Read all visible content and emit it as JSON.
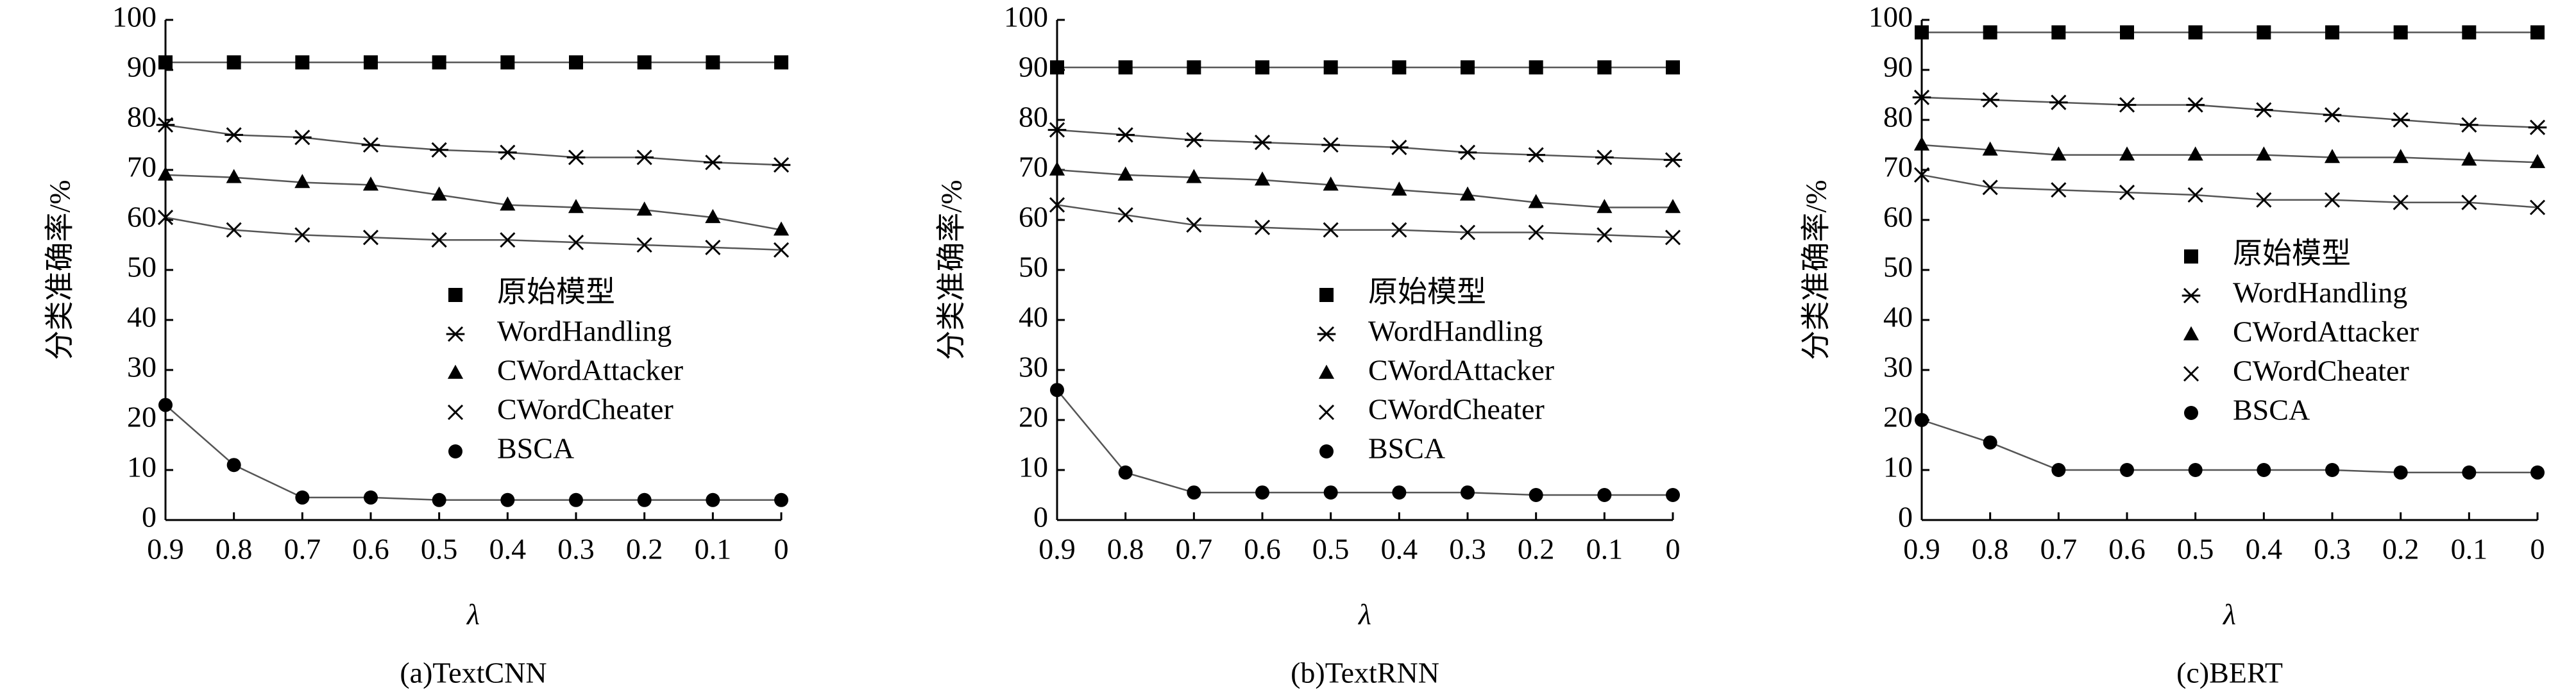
{
  "chart_data": [
    {
      "type": "line",
      "caption": "(a)TextCNN",
      "x_label": "λ",
      "y_label": "分类准确率/%",
      "x": [
        0.9,
        0.8,
        0.7,
        0.6,
        0.5,
        0.4,
        0.3,
        0.2,
        0.1,
        0
      ],
      "xlim": [
        0.9,
        0
      ],
      "xticks": [
        0.9,
        0.8,
        0.7,
        0.6,
        0.5,
        0.4,
        0.3,
        0.2,
        0.1,
        0
      ],
      "ylim": [
        0,
        100
      ],
      "yticks": [
        0,
        10,
        20,
        30,
        40,
        50,
        60,
        70,
        80,
        90,
        100
      ],
      "grid": false,
      "legend": "center right",
      "series": [
        {
          "name": "原始模型",
          "marker": "square",
          "color": "#000000",
          "values": [
            91.5,
            91.5,
            91.5,
            91.5,
            91.5,
            91.5,
            91.5,
            91.5,
            91.5,
            91.5
          ]
        },
        {
          "name": "WordHandling",
          "marker": "asterisk",
          "color": "#000000",
          "values": [
            79,
            77,
            76.5,
            75,
            74,
            73.5,
            72.5,
            72.5,
            71.5,
            71
          ]
        },
        {
          "name": "CWordAttacker",
          "marker": "triangle",
          "color": "#000000",
          "values": [
            69,
            68.5,
            67.5,
            67,
            65,
            63,
            62.5,
            62,
            60.5,
            58
          ]
        },
        {
          "name": "CWordCheater",
          "marker": "x",
          "color": "#000000",
          "values": [
            60.5,
            58,
            57,
            56.5,
            56,
            56,
            55.5,
            55,
            54.5,
            54
          ]
        },
        {
          "name": "BSCA",
          "marker": "circle",
          "color": "#000000",
          "values": [
            23,
            11,
            4.5,
            4.5,
            4,
            4,
            4,
            4,
            4,
            4
          ]
        }
      ]
    },
    {
      "type": "line",
      "caption": "(b)TextRNN",
      "x_label": "λ",
      "y_label": "分类准确率/%",
      "x": [
        0.9,
        0.8,
        0.7,
        0.6,
        0.5,
        0.4,
        0.3,
        0.2,
        0.1,
        0
      ],
      "xlim": [
        0.9,
        0
      ],
      "xticks": [
        0.9,
        0.8,
        0.7,
        0.6,
        0.5,
        0.4,
        0.3,
        0.2,
        0.1,
        0
      ],
      "ylim": [
        0,
        100
      ],
      "yticks": [
        0,
        10,
        20,
        30,
        40,
        50,
        60,
        70,
        80,
        90,
        100
      ],
      "grid": false,
      "legend": "center right",
      "series": [
        {
          "name": "原始模型",
          "marker": "square",
          "color": "#000000",
          "values": [
            90.5,
            90.5,
            90.5,
            90.5,
            90.5,
            90.5,
            90.5,
            90.5,
            90.5,
            90.5
          ]
        },
        {
          "name": "WordHandling",
          "marker": "asterisk",
          "color": "#000000",
          "values": [
            78,
            77,
            76,
            75.5,
            75,
            74.5,
            73.5,
            73,
            72.5,
            72
          ]
        },
        {
          "name": "CWordAttacker",
          "marker": "triangle",
          "color": "#000000",
          "values": [
            70,
            69,
            68.5,
            68,
            67,
            66,
            65,
            63.5,
            62.5,
            62.5
          ]
        },
        {
          "name": "CWordCheater",
          "marker": "x",
          "color": "#000000",
          "values": [
            63,
            61,
            59,
            58.5,
            58,
            58,
            57.5,
            57.5,
            57,
            56.5
          ]
        },
        {
          "name": "BSCA",
          "marker": "circle",
          "color": "#000000",
          "values": [
            26,
            9.5,
            5.5,
            5.5,
            5.5,
            5.5,
            5.5,
            5,
            5,
            5
          ]
        }
      ]
    },
    {
      "type": "line",
      "caption": "(c)BERT",
      "x_label": "λ",
      "y_label": "分类准确率/%",
      "x": [
        0.9,
        0.8,
        0.7,
        0.6,
        0.5,
        0.4,
        0.3,
        0.2,
        0.1,
        0
      ],
      "xlim": [
        0.9,
        0
      ],
      "xticks": [
        0.9,
        0.8,
        0.7,
        0.6,
        0.5,
        0.4,
        0.3,
        0.2,
        0.1,
        0
      ],
      "ylim": [
        0,
        100
      ],
      "yticks": [
        0,
        10,
        20,
        30,
        40,
        50,
        60,
        70,
        80,
        90,
        100
      ],
      "grid": false,
      "legend": "center right",
      "series": [
        {
          "name": "原始模型",
          "marker": "square",
          "color": "#000000",
          "values": [
            97.5,
            97.5,
            97.5,
            97.5,
            97.5,
            97.5,
            97.5,
            97.5,
            97.5,
            97.5
          ]
        },
        {
          "name": "WordHandling",
          "marker": "asterisk",
          "color": "#000000",
          "values": [
            84.5,
            84,
            83.5,
            83,
            83,
            82,
            81,
            80,
            79,
            78.5
          ]
        },
        {
          "name": "CWordAttacker",
          "marker": "triangle",
          "color": "#000000",
          "values": [
            75,
            74,
            73,
            73,
            73,
            73,
            72.5,
            72.5,
            72,
            71.5
          ]
        },
        {
          "name": "CWordCheater",
          "marker": "x",
          "color": "#000000",
          "values": [
            69,
            66.5,
            66,
            65.5,
            65,
            64,
            64,
            63.5,
            63.5,
            62.5
          ]
        },
        {
          "name": "BSCA",
          "marker": "circle",
          "color": "#000000",
          "values": [
            20,
            15.5,
            10,
            10,
            10,
            10,
            10,
            9.5,
            9.5,
            9.5
          ]
        }
      ]
    }
  ]
}
